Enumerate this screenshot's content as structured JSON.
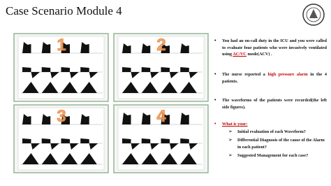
{
  "header": {
    "title": "Case Scenario Module 4"
  },
  "panels": [
    {
      "label": "1"
    },
    {
      "label": "2"
    },
    {
      "label": "3"
    },
    {
      "label": "4"
    }
  ],
  "bullets": [
    {
      "parts": [
        "You had an on-call duty in the ICU and you were called to evaluate four patients who were invasively ventilated using ",
        "AC/VC",
        " mode(ACV) ."
      ]
    },
    {
      "parts": [
        "The nurse reported a ",
        "high pressure alarm",
        " in the 4 patients."
      ]
    },
    {
      "parts": [
        "The waveforms of the patients were recorded(the left side figures)."
      ]
    }
  ],
  "question": {
    "title": "What is your:",
    "items": [
      "Initial evaluation of each Waveform?",
      "Differential Diagnosis of the cause of the Alarm in each patient?",
      "Suggested Management for each case?"
    ]
  }
}
